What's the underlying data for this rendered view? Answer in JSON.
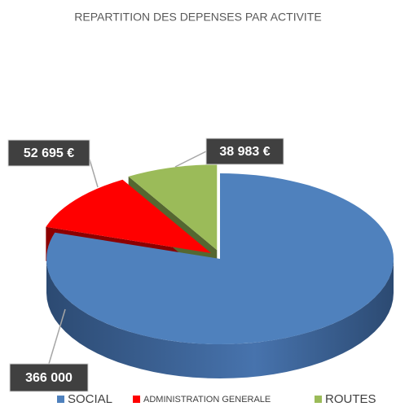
{
  "chart_data": {
    "type": "pie",
    "title": "REPARTITION DES DEPENSES PAR ACTIVITE",
    "categories": [
      "SOCIAL",
      "ADMINISTRATION GENERALE",
      "ROUTES"
    ],
    "values": [
      366000,
      52695,
      38983
    ],
    "value_labels": [
      "366 000",
      "52 695 €",
      "38 983 €"
    ],
    "colors": [
      "#4f81bd",
      "#ff0000",
      "#9bbb59"
    ],
    "legend": "bottom"
  }
}
